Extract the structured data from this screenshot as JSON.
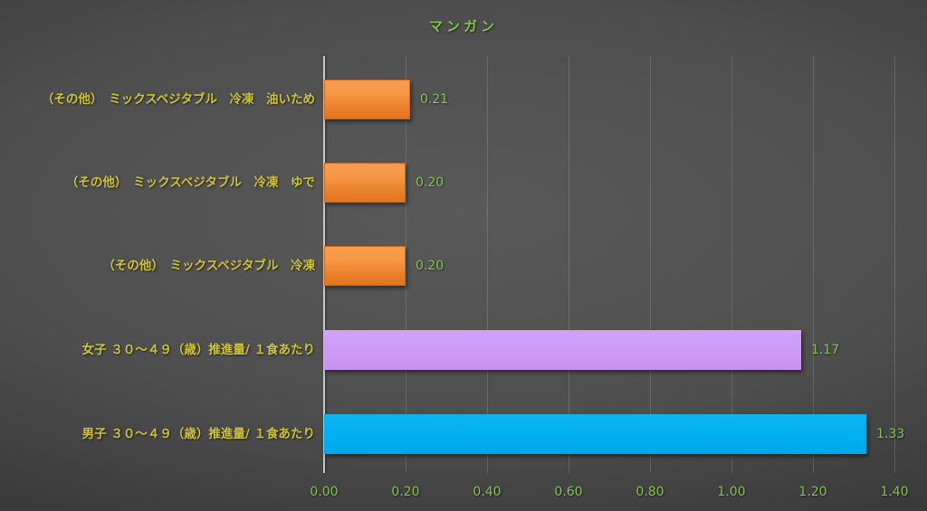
{
  "chart": {
    "title": "マンガン"
  },
  "chart_data": {
    "type": "bar",
    "orientation": "horizontal",
    "title": "マンガン",
    "categories": [
      "（その他）　ミックスベジタブル　冷凍　油いため",
      "（その他）　ミックスベジタブル　冷凍　ゆで",
      "（その他）　ミックスベジタブル　冷凍",
      "女子 ３０～４９（歳）推進量/ １食あたり",
      "男子 ３０～４９（歳）推進量/ １食あたり"
    ],
    "values": [
      0.21,
      0.2,
      0.2,
      1.17,
      1.33
    ],
    "value_labels": [
      "0.21",
      "0.20",
      "0.20",
      "1.17",
      "1.33"
    ],
    "bar_styles": [
      "orange",
      "orange",
      "orange",
      "purple",
      "blue"
    ],
    "bar_colors": [
      "#ED7D31",
      "#ED7D31",
      "#ED7D31",
      "#CC99F5",
      "#00AEEF"
    ],
    "xlabel": "",
    "ylabel": "",
    "xlim": [
      0,
      1.4
    ],
    "x_ticks": [
      "0.00",
      "0.20",
      "0.40",
      "0.60",
      "0.80",
      "1.00",
      "1.20",
      "1.40"
    ],
    "x_tick_values": [
      0.0,
      0.2,
      0.4,
      0.6,
      0.8,
      1.0,
      1.2,
      1.4
    ],
    "grid": true,
    "legend": false,
    "style": {
      "title_color": "#7CC44A",
      "category_label_color": "#CDC23A",
      "value_label_color": "#84C153",
      "tick_label_color": "#82C052",
      "background": "dark-gray-radial-gradient",
      "gridline_color": "rgba(255,255,255,0.14)",
      "axis_line_color": "rgba(230,230,230,0.8)"
    }
  }
}
